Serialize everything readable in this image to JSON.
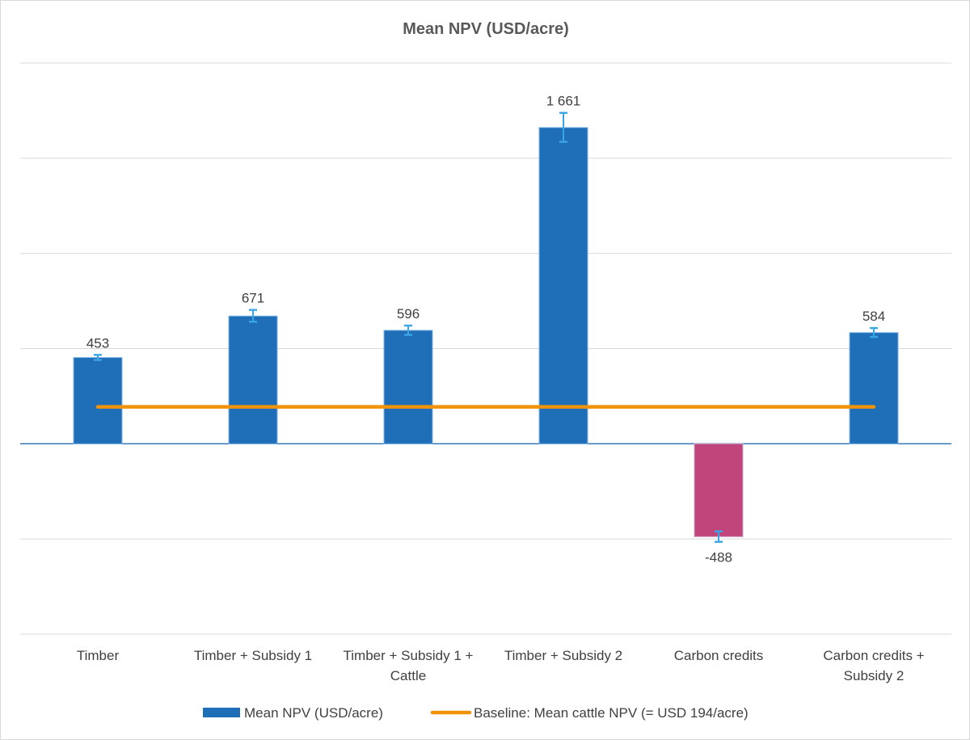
{
  "chart_data": {
    "type": "bar",
    "title": "Mean NPV (USD/acre)",
    "xlabel": "",
    "ylabel": "",
    "ylim": [
      -1000,
      2000
    ],
    "grid": true,
    "gridlines": [
      -1000,
      -500,
      0,
      500,
      1000,
      1500,
      2000
    ],
    "categories": [
      [
        "Timber"
      ],
      [
        "Timber + Subsidy 1"
      ],
      [
        "Timber + Subsidy 1 +",
        "Cattle"
      ],
      [
        "Timber + Subsidy 2"
      ],
      [
        "Carbon credits"
      ],
      [
        "Carbon credits +",
        "Subsidy 2"
      ]
    ],
    "series": [
      {
        "name": "Mean NPV (USD/acre)",
        "type": "bar",
        "values": [
          453,
          671,
          596,
          1661,
          -488,
          584
        ],
        "value_labels": [
          "453",
          "671",
          "596",
          "1 661",
          "-488",
          "584"
        ],
        "error_low": [
          440,
          641,
          572,
          1586,
          -515,
          561
        ],
        "error_high": [
          467,
          703,
          621,
          1738,
          -460,
          608
        ],
        "colors": [
          "#1f6fb8",
          "#1f6fb8",
          "#1f6fb8",
          "#1f6fb8",
          "#c0457a",
          "#1f6fb8"
        ]
      },
      {
        "name": "Baseline: Mean cattle NPV (= USD 194/acre)",
        "type": "line",
        "value": 194,
        "color": "#f0920a"
      }
    ],
    "legend": {
      "position": "bottom",
      "entries": [
        {
          "label": "Mean NPV (USD/acre)",
          "color": "#1f6fb8",
          "kind": "bar"
        },
        {
          "label": "Baseline: Mean cattle NPV (= USD 194/acre)",
          "color": "#f0920a",
          "kind": "line"
        }
      ]
    },
    "colors": {
      "bar": "#1f6fb8",
      "negative_bar": "#c0457a",
      "error_bar": "#3aa6e6",
      "baseline": "#f0920a",
      "grid": "#d9d9d9",
      "zero_line": "#2a6fb5"
    }
  }
}
